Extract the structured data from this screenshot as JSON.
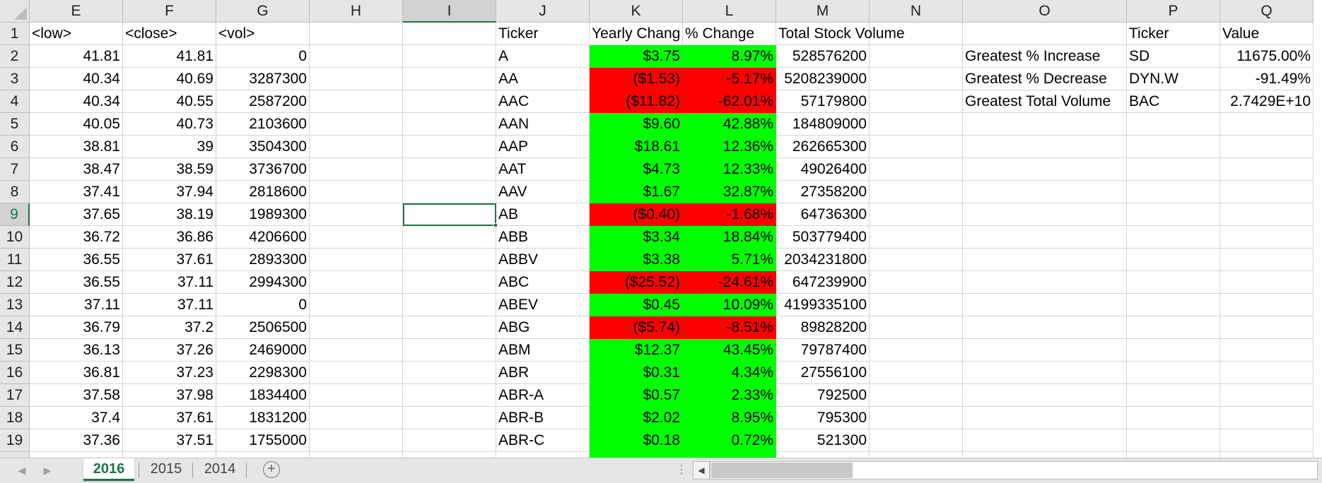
{
  "columns": [
    "E",
    "F",
    "G",
    "H",
    "I",
    "J",
    "K",
    "L",
    "M",
    "N",
    "O",
    "P",
    "Q"
  ],
  "selected_column": "I",
  "selected_row": "9",
  "rows": [
    {
      "n": "1",
      "E": "<low>",
      "F": "<close>",
      "G": "<vol>",
      "J": "Ticker",
      "K": "Yearly Chang",
      "L": "% Change",
      "M": "Total Stock Volume",
      "O": "",
      "P": "Ticker",
      "Q": "Value"
    },
    {
      "n": "2",
      "E": "41.81",
      "F": "41.81",
      "G": "0",
      "J": "A",
      "K": "$3.75",
      "L": "8.97%",
      "M": "528576200",
      "O": "Greatest % Increase",
      "P": "SD",
      "Q": "11675.00%"
    },
    {
      "n": "3",
      "E": "40.34",
      "F": "40.69",
      "G": "3287300",
      "J": "AA",
      "K": "($1.53)",
      "L": "-5.17%",
      "M": "5208239000",
      "O": "Greatest % Decrease",
      "P": "DYN.W",
      "Q": "-91.49%"
    },
    {
      "n": "4",
      "E": "40.34",
      "F": "40.55",
      "G": "2587200",
      "J": "AAC",
      "K": "($11.82)",
      "L": "-62.01%",
      "M": "57179800",
      "O": "Greatest Total Volume",
      "P": "BAC",
      "Q": "2.7429E+10"
    },
    {
      "n": "5",
      "E": "40.05",
      "F": "40.73",
      "G": "2103600",
      "J": "AAN",
      "K": "$9.60",
      "L": "42.88%",
      "M": "184809000"
    },
    {
      "n": "6",
      "E": "38.81",
      "F": "39",
      "G": "3504300",
      "J": "AAP",
      "K": "$18.61",
      "L": "12.36%",
      "M": "262665300"
    },
    {
      "n": "7",
      "E": "38.47",
      "F": "38.59",
      "G": "3736700",
      "J": "AAT",
      "K": "$4.73",
      "L": "12.33%",
      "M": "49026400"
    },
    {
      "n": "8",
      "E": "37.41",
      "F": "37.94",
      "G": "2818600",
      "J": "AAV",
      "K": "$1.67",
      "L": "32.87%",
      "M": "27358200"
    },
    {
      "n": "9",
      "E": "37.65",
      "F": "38.19",
      "G": "1989300",
      "J": "AB",
      "K": "($0.40)",
      "L": "-1.68%",
      "M": "64736300"
    },
    {
      "n": "10",
      "E": "36.72",
      "F": "36.86",
      "G": "4206600",
      "J": "ABB",
      "K": "$3.34",
      "L": "18.84%",
      "M": "503779400"
    },
    {
      "n": "11",
      "E": "36.55",
      "F": "37.61",
      "G": "2893300",
      "J": "ABBV",
      "K": "$3.38",
      "L": "5.71%",
      "M": "2034231800"
    },
    {
      "n": "12",
      "E": "36.55",
      "F": "37.11",
      "G": "2994300",
      "J": "ABC",
      "K": "($25.52)",
      "L": "-24.61%",
      "M": "647239900"
    },
    {
      "n": "13",
      "E": "37.11",
      "F": "37.11",
      "G": "0",
      "J": "ABEV",
      "K": "$0.45",
      "L": "10.09%",
      "M": "4199335100"
    },
    {
      "n": "14",
      "E": "36.79",
      "F": "37.2",
      "G": "2506500",
      "J": "ABG",
      "K": "($5.74)",
      "L": "-8.51%",
      "M": "89828200"
    },
    {
      "n": "15",
      "E": "36.13",
      "F": "37.26",
      "G": "2469000",
      "J": "ABM",
      "K": "$12.37",
      "L": "43.45%",
      "M": "79787400"
    },
    {
      "n": "16",
      "E": "36.81",
      "F": "37.23",
      "G": "2298300",
      "J": "ABR",
      "K": "$0.31",
      "L": "4.34%",
      "M": "27556100"
    },
    {
      "n": "17",
      "E": "37.58",
      "F": "37.98",
      "G": "1834400",
      "J": "ABR-A",
      "K": "$0.57",
      "L": "2.33%",
      "M": "792500"
    },
    {
      "n": "18",
      "E": "37.4",
      "F": "37.61",
      "G": "1831200",
      "J": "ABR-B",
      "K": "$2.02",
      "L": "8.95%",
      "M": "795300"
    },
    {
      "n": "19",
      "E": "37.36",
      "F": "37.51",
      "G": "1755000",
      "J": "ABR-C",
      "K": "$0.18",
      "L": "0.72%",
      "M": "521300"
    }
  ],
  "change_fill": {
    "positive": "#00ff00",
    "negative": "#ff0000",
    "by_row": [
      "",
      "pos",
      "neg",
      "neg",
      "pos",
      "pos",
      "pos",
      "pos",
      "neg",
      "pos",
      "pos",
      "neg",
      "pos",
      "neg",
      "pos",
      "pos",
      "pos",
      "pos",
      "pos"
    ]
  },
  "tabs": [
    {
      "label": "2016",
      "active": true
    },
    {
      "label": "2015",
      "active": false
    },
    {
      "label": "2014",
      "active": false
    }
  ],
  "tabbar": {
    "add_sheet_icon": "plus-circle-icon",
    "prev_icon": "chevron-left-icon",
    "next_icon": "chevron-right-icon"
  },
  "accent_color": "#217346"
}
